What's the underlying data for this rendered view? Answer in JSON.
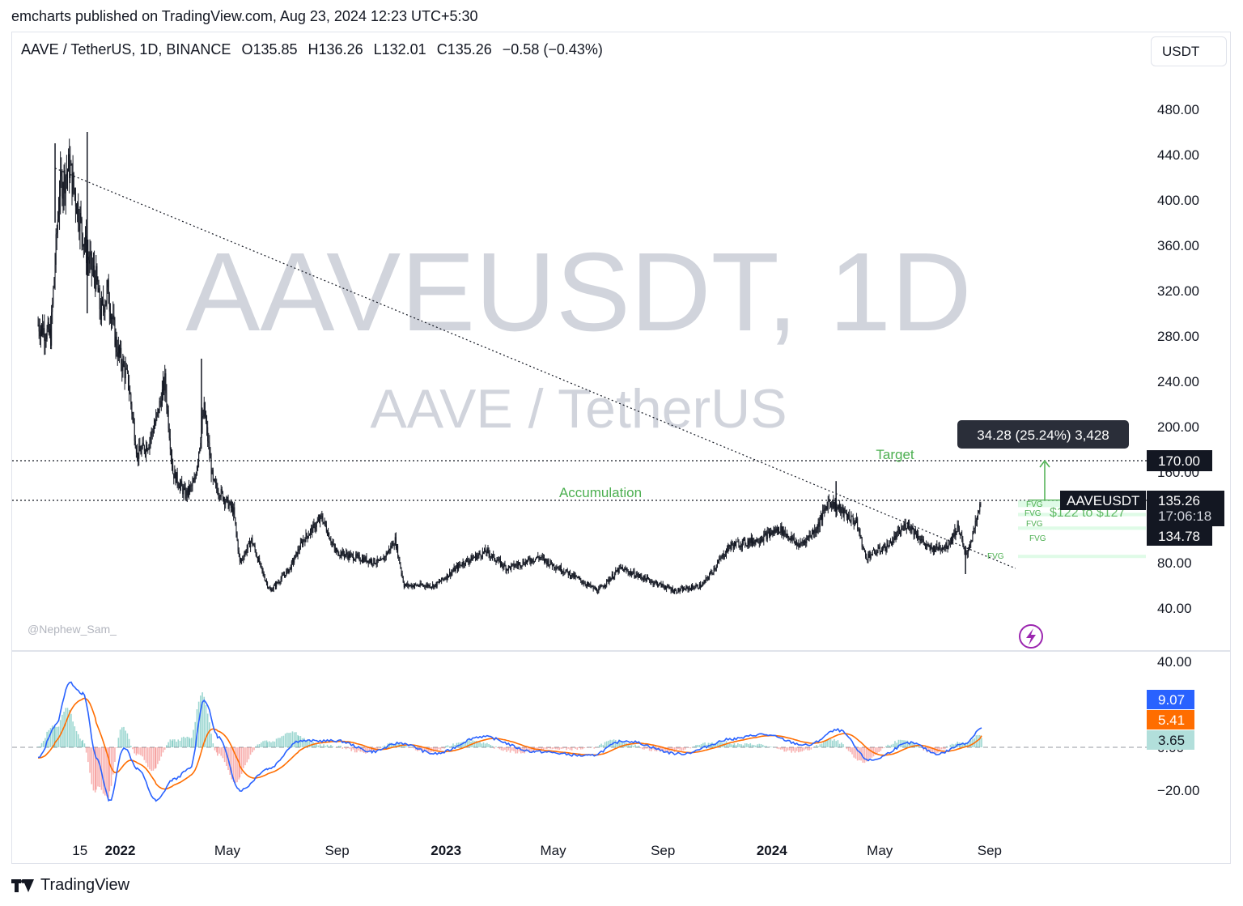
{
  "header": {
    "publisher_line": "emcharts published on TradingView.com, Aug 23, 2024 12:23 UTC+5:30"
  },
  "legend": {
    "symbol": "AAVE / TetherUS, 1D, BINANCE",
    "open": "O135.85",
    "high": "H136.26",
    "low": "L132.01",
    "close": "C135.26",
    "change": "−0.58 (−0.43%)"
  },
  "currency_label": "USDT",
  "watermark": {
    "symbol": "AAVEUSDT, 1D",
    "name": "AAVE / TetherUS"
  },
  "author_tag": "@Nephew_Sam_",
  "brand": "TradingView",
  "colors": {
    "up_green": "#4caf50",
    "macd_blue": "#2962ff",
    "signal_orange": "#ff6d00",
    "hist_teal": "#b2dfdb",
    "hist_red": "#ffcdd2",
    "label_dark": "#131722",
    "callout_bg": "#2a2e39"
  },
  "chart_data": [
    {
      "type": "line",
      "subtype": "candlestick",
      "y_axis": {
        "ticks": [
          "480.00",
          "440.00",
          "400.00",
          "360.00",
          "320.00",
          "280.00",
          "240.00",
          "200.00",
          "160.00",
          "80.00",
          "40.00"
        ],
        "range": [
          0,
          520
        ]
      },
      "x_axis": {
        "ticks": [
          {
            "label": "15",
            "bold": false
          },
          {
            "label": "2022",
            "bold": true
          },
          {
            "label": "May",
            "bold": false
          },
          {
            "label": "Sep",
            "bold": false
          },
          {
            "label": "2023",
            "bold": true
          },
          {
            "label": "May",
            "bold": false
          },
          {
            "label": "Sep",
            "bold": false
          },
          {
            "label": "2024",
            "bold": true
          },
          {
            "label": "May",
            "bold": false
          },
          {
            "label": "Sep",
            "bold": false
          }
        ]
      },
      "price_path": [
        [
          "2021-10-01",
          290
        ],
        [
          "2021-10-15",
          280
        ],
        [
          "2021-10-25",
          410
        ],
        [
          "2021-11-05",
          430
        ],
        [
          "2021-11-15",
          390
        ],
        [
          "2021-11-25",
          350
        ],
        [
          "2021-12-05",
          330
        ],
        [
          "2021-12-10",
          300
        ],
        [
          "2021-12-18",
          320
        ],
        [
          "2021-12-28",
          270
        ],
        [
          "2022-01-10",
          240
        ],
        [
          "2022-01-20",
          175
        ],
        [
          "2022-02-01",
          185
        ],
        [
          "2022-02-10",
          205
        ],
        [
          "2022-02-20",
          240
        ],
        [
          "2022-03-01",
          160
        ],
        [
          "2022-03-15",
          140
        ],
        [
          "2022-03-25",
          150
        ],
        [
          "2022-04-05",
          215
        ],
        [
          "2022-04-15",
          150
        ],
        [
          "2022-04-25",
          140
        ],
        [
          "2022-05-08",
          125
        ],
        [
          "2022-05-15",
          80
        ],
        [
          "2022-05-28",
          100
        ],
        [
          "2022-06-10",
          70
        ],
        [
          "2022-06-18",
          55
        ],
        [
          "2022-07-10",
          75
        ],
        [
          "2022-07-25",
          100
        ],
        [
          "2022-08-15",
          120
        ],
        [
          "2022-08-30",
          90
        ],
        [
          "2022-09-20",
          85
        ],
        [
          "2022-10-20",
          80
        ],
        [
          "2022-11-05",
          100
        ],
        [
          "2022-11-15",
          60
        ],
        [
          "2022-12-20",
          60
        ],
        [
          "2023-01-20",
          80
        ],
        [
          "2023-02-15",
          90
        ],
        [
          "2023-03-10",
          75
        ],
        [
          "2023-04-15",
          85
        ],
        [
          "2023-05-20",
          70
        ],
        [
          "2023-06-20",
          55
        ],
        [
          "2023-07-15",
          75
        ],
        [
          "2023-08-15",
          65
        ],
        [
          "2023-09-15",
          55
        ],
        [
          "2023-10-15",
          60
        ],
        [
          "2023-11-15",
          95
        ],
        [
          "2023-12-15",
          100
        ],
        [
          "2024-01-10",
          110
        ],
        [
          "2024-02-01",
          95
        ],
        [
          "2024-02-20",
          110
        ],
        [
          "2024-03-05",
          135
        ],
        [
          "2024-03-20",
          125
        ],
        [
          "2024-04-05",
          115
        ],
        [
          "2024-04-15",
          85
        ],
        [
          "2024-05-10",
          95
        ],
        [
          "2024-06-01",
          115
        ],
        [
          "2024-06-25",
          92
        ],
        [
          "2024-07-15",
          95
        ],
        [
          "2024-07-28",
          112
        ],
        [
          "2024-08-05",
          85
        ],
        [
          "2024-08-15",
          110
        ],
        [
          "2024-08-23",
          135.26
        ]
      ],
      "spikes": [
        {
          "date": "2021-11-25",
          "high": 460,
          "low": 300
        },
        {
          "date": "2021-10-20",
          "high": 450,
          "low": 380
        },
        {
          "date": "2022-04-02",
          "high": 260,
          "low": 190
        },
        {
          "date": "2024-03-13",
          "high": 152,
          "low": 120
        },
        {
          "date": "2024-08-05",
          "high": 95,
          "low": 70
        }
      ],
      "levels": [
        {
          "name": "Target",
          "value": 170.0,
          "label": "170.00",
          "style": "dotted"
        },
        {
          "name": "Accumulation",
          "value": 135,
          "label": "",
          "style": "dotted"
        }
      ],
      "trendline": {
        "from": [
          "2021-10-20",
          428
        ],
        "to": [
          "2024-09-30",
          75
        ]
      },
      "annotations": {
        "target_text": "Target",
        "accumulation_text": "Accumulation",
        "measure_box": "34.28 (25.24%) 3,428",
        "fvg_label": "FVG",
        "fvg_range": "$122 to $127"
      },
      "price_labels": {
        "last_symbol": "AAVEUSDT",
        "last_price": "135.26",
        "countdown": "17:06:18",
        "other_price": "134.78"
      }
    },
    {
      "type": "line",
      "subtype": "macd",
      "y_axis": {
        "ticks": [
          "40.00",
          "0.00",
          "−20.00"
        ],
        "range": [
          -30,
          40
        ]
      },
      "values": {
        "macd": "9.07",
        "signal": "5.41",
        "histogram": "3.65"
      },
      "macd_path": [
        [
          "2021-10-01",
          -5
        ],
        [
          "2021-10-20",
          10
        ],
        [
          "2021-11-05",
          30
        ],
        [
          "2021-11-20",
          25
        ],
        [
          "2021-12-05",
          -5
        ],
        [
          "2021-12-20",
          -25
        ],
        [
          "2022-01-05",
          0
        ],
        [
          "2022-01-20",
          -10
        ],
        [
          "2022-02-10",
          -25
        ],
        [
          "2022-03-01",
          -15
        ],
        [
          "2022-03-20",
          -10
        ],
        [
          "2022-04-05",
          22
        ],
        [
          "2022-04-20",
          5
        ],
        [
          "2022-05-15",
          -20
        ],
        [
          "2022-06-15",
          -10
        ],
        [
          "2022-07-20",
          3
        ],
        [
          "2022-09-01",
          3
        ],
        [
          "2022-10-10",
          -2
        ],
        [
          "2022-11-10",
          2
        ],
        [
          "2022-12-20",
          -3
        ],
        [
          "2023-02-10",
          5
        ],
        [
          "2023-04-10",
          -2
        ],
        [
          "2023-06-10",
          -4
        ],
        [
          "2023-07-20",
          3
        ],
        [
          "2023-09-20",
          -3
        ],
        [
          "2023-11-20",
          4
        ],
        [
          "2023-12-20",
          6
        ],
        [
          "2024-02-10",
          1
        ],
        [
          "2024-03-15",
          8
        ],
        [
          "2024-04-20",
          -6
        ],
        [
          "2024-06-05",
          2
        ],
        [
          "2024-07-05",
          -3
        ],
        [
          "2024-08-05",
          2
        ],
        [
          "2024-08-23",
          9.07
        ]
      ]
    }
  ]
}
